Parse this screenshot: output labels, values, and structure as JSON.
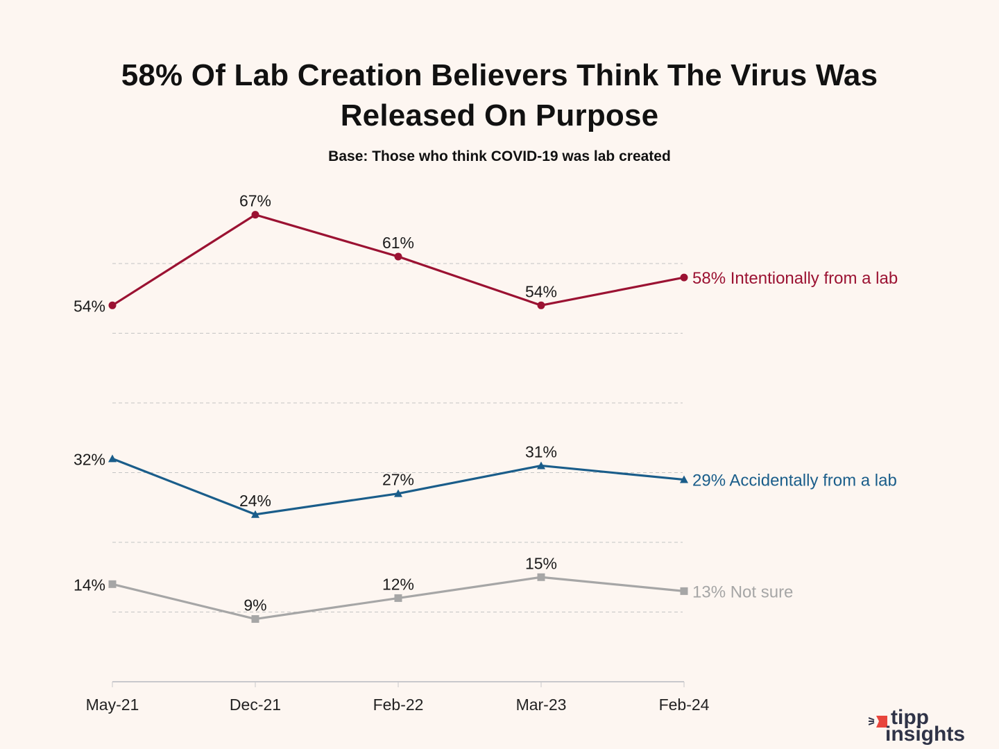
{
  "chart_data": {
    "type": "line",
    "title": "58% Of Lab Creation Believers Think The Virus Was Released On Purpose",
    "subtitle": "Base: Those who think COVID-19 was lab created",
    "xlabel": "",
    "ylabel": "",
    "categories": [
      "May-21",
      "Dec-21",
      "Feb-22",
      "Mar-23",
      "Feb-24"
    ],
    "ylim": [
      0,
      70
    ],
    "grid": true,
    "gridlines": [
      10,
      20,
      30,
      40,
      50,
      60
    ],
    "series": [
      {
        "name": "Intentionally from a lab",
        "color": "#9b1232",
        "marker": "circle",
        "values": [
          54,
          67,
          61,
          54,
          58
        ],
        "labels": [
          "54%",
          "67%",
          "61%",
          "54%",
          ""
        ],
        "end_label": "58% Intentionally from a lab"
      },
      {
        "name": "Accidentally from a lab",
        "color": "#1a5d8a",
        "marker": "triangle",
        "values": [
          32,
          24,
          27,
          31,
          29
        ],
        "labels": [
          "32%",
          "24%",
          "27%",
          "31%",
          ""
        ],
        "end_label": "29% Accidentally from a lab"
      },
      {
        "name": "Not sure",
        "color": "#a6a6a6",
        "marker": "square",
        "values": [
          14,
          9,
          12,
          15,
          13
        ],
        "labels": [
          "14%",
          "9%",
          "12%",
          "15%",
          ""
        ],
        "end_label": "13% Not sure"
      }
    ]
  },
  "title_line1": "58% Of Lab Creation Believers Think The Virus Was",
  "title_line2": "Released On Purpose",
  "logo": {
    "word1": "tipp",
    "word2": "insights",
    "accent": "#e8453c"
  }
}
